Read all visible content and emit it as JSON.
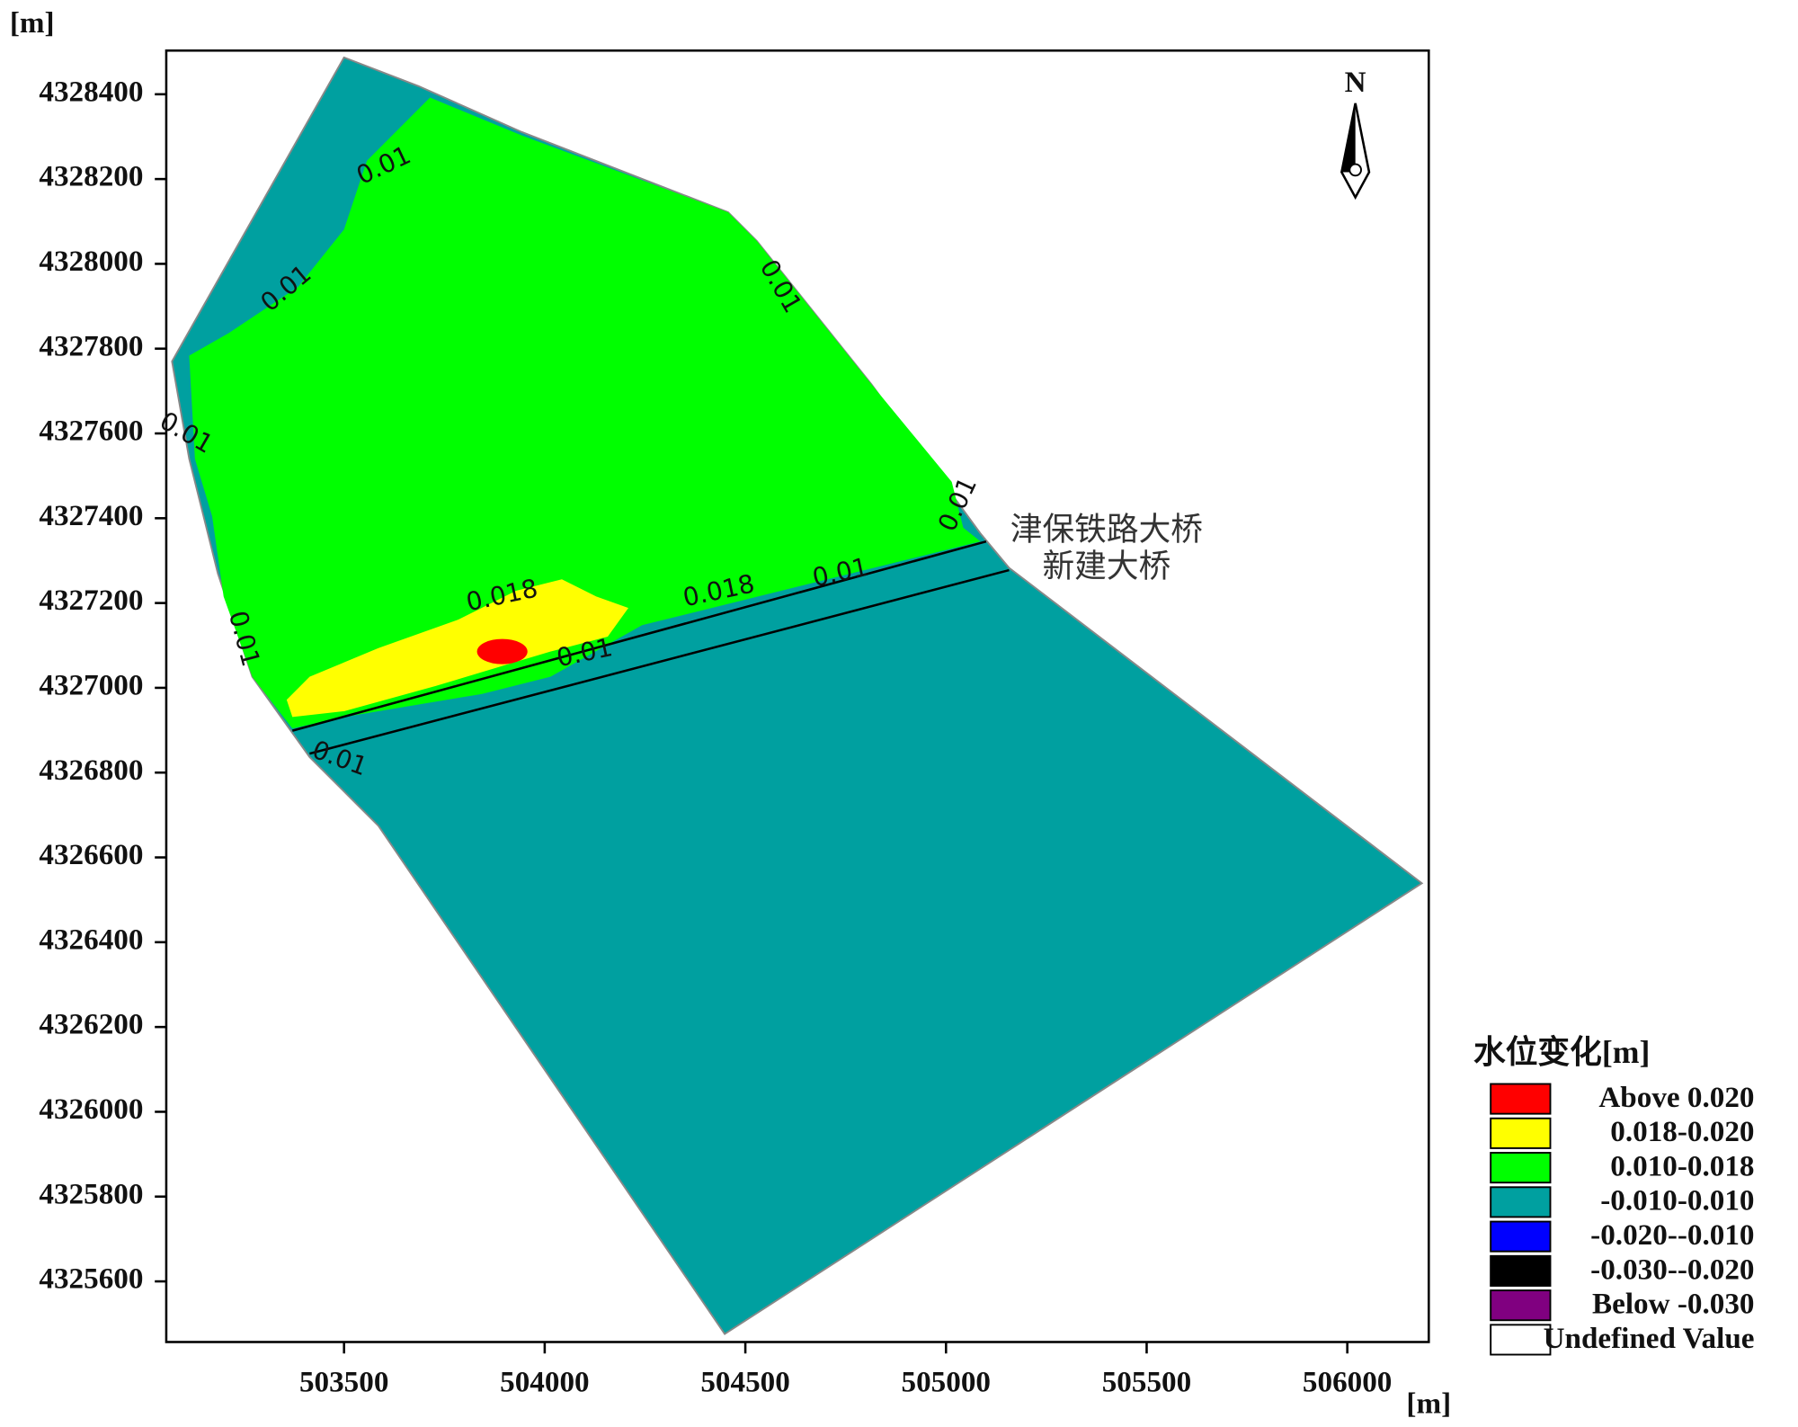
{
  "map": {
    "y_unit": "[m]",
    "x_unit": "[m]",
    "xlim": [
      503057,
      506203
    ],
    "ylim": [
      4325457,
      4328503
    ],
    "xticks": [
      503500,
      504000,
      504500,
      505000,
      505500,
      506000
    ],
    "yticks": [
      4325600,
      4325800,
      4326000,
      4326200,
      4326400,
      4326600,
      4326800,
      4327000,
      4327200,
      4327400,
      4327600,
      4327800,
      4328000,
      4328200,
      4328400
    ],
    "north": "N",
    "contour_labels": [
      "0.01",
      "0.01",
      "0.01",
      "0.01",
      "0.01",
      "0.018",
      "0.018",
      "0.01",
      "0.01",
      "0.01",
      "0.01"
    ],
    "annotations": [
      "津保铁路大桥",
      "新建大桥"
    ],
    "legend": {
      "title": "水位变化[m]",
      "items": [
        {
          "label": "Above 0.020",
          "color": "#ff0000"
        },
        {
          "label": "0.018-0.020",
          "color": "#ffff00"
        },
        {
          "label": "0.010-0.018",
          "color": "#00ff00"
        },
        {
          "label": "-0.010-0.010",
          "color": "#00a0a0"
        },
        {
          "label": "-0.020--0.010",
          "color": "#0000ff"
        },
        {
          "label": "-0.030--0.020",
          "color": "#000000"
        },
        {
          "label": "Below -0.030",
          "color": "#800080"
        },
        {
          "label": "Undefined Value",
          "color": "#ffffff"
        }
      ]
    }
  }
}
